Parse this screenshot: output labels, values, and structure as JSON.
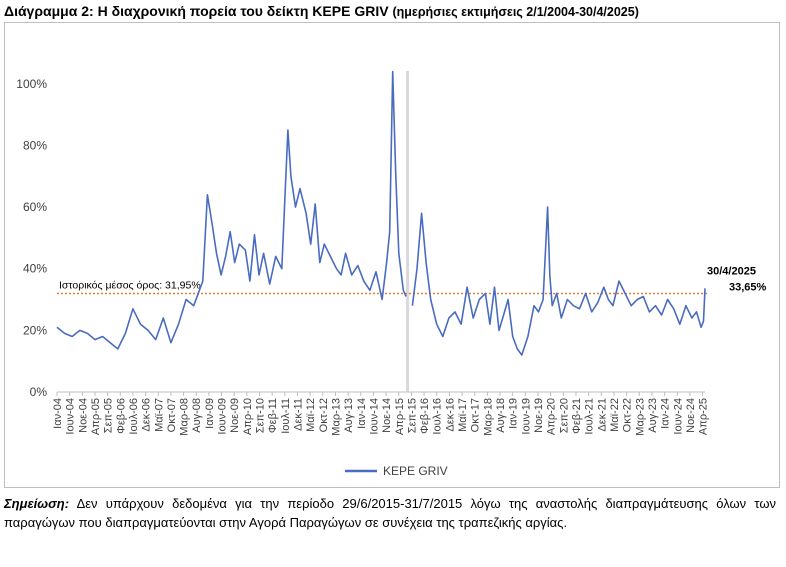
{
  "title": {
    "main": "Διάγραμμα 2: Η διαχρονική πορεία του δείκτη ΚΕΡΕ GRIV",
    "sub": "(ημερήσιες εκτιμήσεις 2/1/2004-30/4/2025)"
  },
  "note": {
    "label": "Σημείωση:",
    "text": "Δεν υπάρχουν δεδομένα για την περίοδο 29/6/2015-31/7/2015 λόγω της αναστολής διαπραγμάτευσης όλων των παραγώγων που διαπραγματεύονται στην Αγορά Παραγώγων σε συνέχεια της τραπεζικής αργίας."
  },
  "colors": {
    "series": "#4a6cc0",
    "mean_line": "#e07b39",
    "gap_band": "#d9d9d9",
    "axis": "#bfbfbf"
  },
  "chart_data": {
    "type": "line",
    "y_ticks": [
      "0%",
      "20%",
      "40%",
      "60%",
      "80%",
      "100%"
    ],
    "ylim": [
      0,
      110
    ],
    "xlim": [
      2004.0,
      2025.33
    ],
    "x_tick_labels": [
      "Ιαν-04",
      "Ιουν-04",
      "Νοε-04",
      "Απρ-05",
      "Σεπ-05",
      "Φεβ-06",
      "Ιουλ-06",
      "Δεκ-06",
      "Μαϊ-07",
      "Οκτ-07",
      "Μαρ-08",
      "Αυγ-08",
      "Ιαν-09",
      "Ιουν-09",
      "Νοε-09",
      "Απρ-10",
      "Σεπ-10",
      "Φεβ-11",
      "Ιουλ-11",
      "Δεκ-11",
      "Μαϊ-12",
      "Οκτ-12",
      "Μαρ-13",
      "Αυγ-13",
      "Ιαν-14",
      "Ιουν-14",
      "Νοε-14",
      "Απρ-15",
      "Σεπ-15",
      "Φεβ-16",
      "Ιουλ-16",
      "Δεκ-16",
      "Μαϊ-17",
      "Οκτ-17",
      "Μαρ-18",
      "Αυγ-18",
      "Ιαν-19",
      "Ιουν-19",
      "Νοε-19",
      "Απρ-20",
      "Σεπ-20",
      "Φεβ-21",
      "Ιουλ-21",
      "Δεκ-21",
      "Μαϊ-22",
      "Οκτ-22",
      "Μαρ-23",
      "Αυγ-23",
      "Ιαν-24",
      "Ιουν-24",
      "Νοε-24",
      "Απρ-25"
    ],
    "mean": {
      "value": 31.95,
      "label": "Ιστορικός μέσος όρος: 31,95%"
    },
    "gap": [
      2015.49,
      2015.58
    ],
    "last_point": {
      "date_label": "30/4/2025",
      "value_label": "33,65%",
      "x": 2025.33,
      "y": 33.65
    },
    "series": [
      {
        "name": "ΚΕΡΕ GRIV",
        "x": [
          2004.0,
          2004.25,
          2004.5,
          2004.75,
          2005.0,
          2005.25,
          2005.5,
          2005.75,
          2006.0,
          2006.25,
          2006.5,
          2006.75,
          2007.0,
          2007.25,
          2007.5,
          2007.75,
          2008.0,
          2008.25,
          2008.5,
          2008.65,
          2008.8,
          2008.95,
          2009.1,
          2009.25,
          2009.4,
          2009.55,
          2009.7,
          2009.85,
          2010.0,
          2010.2,
          2010.35,
          2010.5,
          2010.65,
          2010.8,
          2011.0,
          2011.2,
          2011.4,
          2011.6,
          2011.7,
          2011.85,
          2012.0,
          2012.2,
          2012.35,
          2012.5,
          2012.65,
          2012.8,
          2013.0,
          2013.2,
          2013.35,
          2013.5,
          2013.7,
          2013.9,
          2014.1,
          2014.3,
          2014.5,
          2014.7,
          2014.85,
          2014.95,
          2015.05,
          2015.15,
          2015.25,
          2015.4,
          2015.49,
          2015.58,
          2015.7,
          2015.85,
          2016.0,
          2016.15,
          2016.3,
          2016.5,
          2016.7,
          2016.9,
          2017.1,
          2017.3,
          2017.5,
          2017.7,
          2017.9,
          2018.1,
          2018.25,
          2018.4,
          2018.55,
          2018.7,
          2018.85,
          2019.0,
          2019.15,
          2019.3,
          2019.5,
          2019.7,
          2019.85,
          2020.0,
          2020.15,
          2020.22,
          2020.3,
          2020.45,
          2020.6,
          2020.8,
          2021.0,
          2021.2,
          2021.4,
          2021.6,
          2021.8,
          2022.0,
          2022.15,
          2022.3,
          2022.5,
          2022.7,
          2022.9,
          2023.1,
          2023.3,
          2023.5,
          2023.7,
          2023.9,
          2024.1,
          2024.3,
          2024.5,
          2024.7,
          2024.9,
          2025.05,
          2025.2,
          2025.28,
          2025.33
        ],
        "y": [
          21,
          19,
          18,
          20,
          19,
          17,
          18,
          16,
          14,
          19,
          27,
          22,
          20,
          17,
          24,
          16,
          22,
          30,
          28,
          32,
          36,
          64,
          55,
          45,
          38,
          44,
          52,
          42,
          48,
          46,
          36,
          51,
          38,
          45,
          35,
          44,
          40,
          85,
          70,
          60,
          66,
          58,
          48,
          61,
          42,
          48,
          44,
          40,
          38,
          45,
          38,
          41,
          36,
          33,
          39,
          30,
          42,
          52,
          104,
          71,
          45,
          33,
          31,
          null,
          28,
          40,
          58,
          42,
          30,
          22,
          18,
          24,
          26,
          22,
          34,
          24,
          30,
          32,
          22,
          34,
          20,
          25,
          30,
          18,
          14,
          12,
          18,
          28,
          26,
          30,
          60,
          38,
          28,
          32,
          24,
          30,
          28,
          27,
          32,
          26,
          29,
          34,
          30,
          28,
          36,
          32,
          28,
          30,
          31,
          26,
          28,
          25,
          30,
          27,
          22,
          28,
          24,
          26,
          21,
          23,
          33.65
        ]
      }
    ]
  }
}
